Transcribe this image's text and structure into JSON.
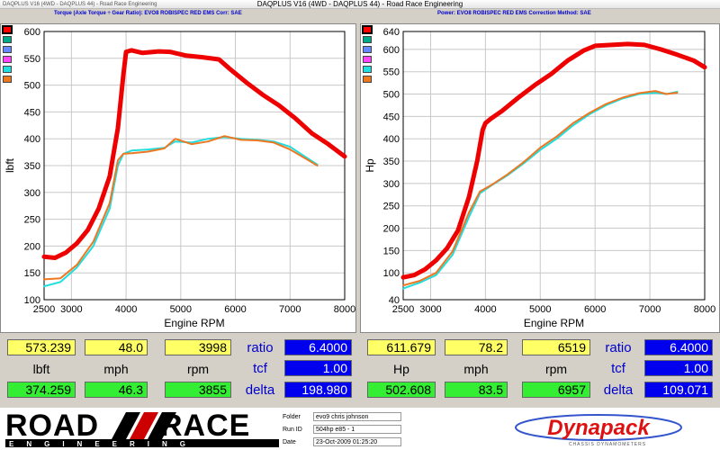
{
  "window": {
    "small_title": "DAQPLUS V16 (4WD - DAQPLUS 44) - Road Race Engineering",
    "title": "DAQPLUS V16 (4WD - DAQPLUS 44) - Road Race Engineering"
  },
  "left_header": {
    "text": "Torque (Axle Torque ÷ Gear Ratio): EVO8 ROBISPEC RED EMS     Corr: SAE"
  },
  "right_header": {
    "text": "Power: EVO8 ROBISPEC RED EMS     Correction Method: SAE"
  },
  "legend_colors": [
    "#ff0000",
    "#00aa88",
    "#6688ff",
    "#ff44ff",
    "#22dddd",
    "#ee7722"
  ],
  "chart_data": [
    {
      "type": "line",
      "title": "",
      "xlabel": "Engine RPM",
      "ylabel": "lbft",
      "xlim": [
        2500,
        8000
      ],
      "ylim": [
        100,
        600
      ],
      "xticks": [
        "2500",
        "3000",
        "4000",
        "5000",
        "6000",
        "7000",
        "8000"
      ],
      "yticks": [
        "100",
        "150",
        "200",
        "250",
        "300",
        "350",
        "400",
        "450",
        "500",
        "550",
        "600"
      ],
      "grid": true,
      "series": [
        {
          "color": "#ee0000",
          "x": [
            2500,
            2700,
            2900,
            3100,
            3300,
            3500,
            3700,
            3850,
            3950,
            4000,
            4100,
            4300,
            4600,
            4800,
            5100,
            5400,
            5700,
            5900,
            6200,
            6500,
            6800,
            7100,
            7400,
            7700,
            8000
          ],
          "y": [
            180,
            178,
            188,
            205,
            230,
            270,
            330,
            420,
            520,
            562,
            565,
            560,
            563,
            562,
            555,
            552,
            548,
            530,
            505,
            482,
            462,
            438,
            410,
            390,
            367
          ]
        },
        {
          "color": "#22dddd",
          "x": [
            2500,
            2800,
            3100,
            3400,
            3700,
            3850,
            3950,
            4100,
            4400,
            4700,
            4900,
            5200,
            5500,
            5800,
            6100,
            6400,
            6700,
            7000,
            7300,
            7500
          ],
          "y": [
            125,
            133,
            160,
            200,
            270,
            350,
            372,
            378,
            380,
            383,
            395,
            393,
            400,
            403,
            400,
            398,
            395,
            385,
            365,
            352
          ]
        },
        {
          "color": "#ee7722",
          "x": [
            2500,
            2800,
            3100,
            3400,
            3700,
            3850,
            3950,
            4100,
            4400,
            4700,
            4900,
            5200,
            5500,
            5800,
            6100,
            6400,
            6700,
            7000,
            7300,
            7500
          ],
          "y": [
            138,
            140,
            165,
            208,
            280,
            360,
            372,
            373,
            376,
            382,
            400,
            390,
            395,
            405,
            398,
            397,
            393,
            380,
            362,
            350
          ]
        }
      ]
    },
    {
      "type": "line",
      "title": "",
      "xlabel": "Engine RPM",
      "ylabel": "Hp",
      "xlim": [
        2500,
        8000
      ],
      "ylim": [
        40,
        640
      ],
      "xticks": [
        "2500",
        "3000",
        "4000",
        "5000",
        "6000",
        "7000",
        "8000"
      ],
      "yticks": [
        "40",
        "100",
        "150",
        "200",
        "250",
        "300",
        "350",
        "400",
        "450",
        "500",
        "550",
        "600",
        "640"
      ],
      "grid": true,
      "series": [
        {
          "color": "#ee0000",
          "x": [
            2500,
            2700,
            2900,
            3100,
            3300,
            3500,
            3700,
            3850,
            3950,
            4000,
            4100,
            4300,
            4600,
            4900,
            5200,
            5500,
            5800,
            6000,
            6300,
            6600,
            6900,
            7200,
            7500,
            7800,
            8000
          ],
          "y": [
            90,
            95,
            108,
            128,
            155,
            195,
            270,
            350,
            420,
            435,
            445,
            462,
            492,
            520,
            545,
            575,
            598,
            608,
            610,
            612,
            610,
            600,
            588,
            575,
            560
          ]
        },
        {
          "color": "#22dddd",
          "x": [
            2500,
            2800,
            3100,
            3400,
            3700,
            3900,
            4100,
            4400,
            4700,
            5000,
            5300,
            5600,
            5900,
            6200,
            6500,
            6800,
            7100,
            7300,
            7500
          ],
          "y": [
            65,
            78,
            95,
            140,
            225,
            278,
            295,
            318,
            345,
            375,
            400,
            430,
            455,
            475,
            490,
            500,
            503,
            500,
            505
          ]
        },
        {
          "color": "#ee7722",
          "x": [
            2500,
            2800,
            3100,
            3400,
            3700,
            3900,
            4100,
            4400,
            4700,
            5000,
            5300,
            5600,
            5900,
            6200,
            6500,
            6800,
            7100,
            7300,
            7500
          ],
          "y": [
            72,
            82,
            100,
            148,
            235,
            282,
            296,
            320,
            348,
            380,
            405,
            435,
            458,
            478,
            492,
            502,
            507,
            500,
            503
          ]
        }
      ]
    }
  ],
  "left_readout": {
    "torque_value": "573.239",
    "speed_value": "48.0",
    "rpm_value": "3998",
    "ratio_label": "ratio",
    "ratio_value": "6.4000",
    "unit_torque": "lbft",
    "unit_speed": "mph",
    "unit_rpm": "rpm",
    "tcf_label": "tcf",
    "tcf_value": "1.00",
    "torque2_value": "374.259",
    "speed2_value": "46.3",
    "rpm2_value": "3855",
    "delta_label": "delta",
    "delta_value": "198.980"
  },
  "right_readout": {
    "power_value": "611.679",
    "speed_value": "78.2",
    "rpm_value": "6519",
    "ratio_label": "ratio",
    "ratio_value": "6.4000",
    "unit_power": "Hp",
    "unit_speed": "mph",
    "unit_rpm": "rpm",
    "tcf_label": "tcf",
    "tcf_value": "1.00",
    "power2_value": "502.608",
    "speed2_value": "83.5",
    "rpm2_value": "6957",
    "delta_label": "delta",
    "delta_value": "109.071"
  },
  "footer": {
    "logo_road": "ROAD",
    "logo_race": "RACE",
    "logo_engineering": "ENGINEERING",
    "folder_label": "Folder",
    "folder_value": "evo9 chris johnson",
    "runid_label": "Run ID",
    "runid_value": "504hp e85 - 1",
    "date_label": "Date",
    "date_value": "23-Oct-2009  01:25:20",
    "dynapack_logo": "Dynapack",
    "dynapack_sub": "CHASSIS DYNAMOMETERS"
  }
}
